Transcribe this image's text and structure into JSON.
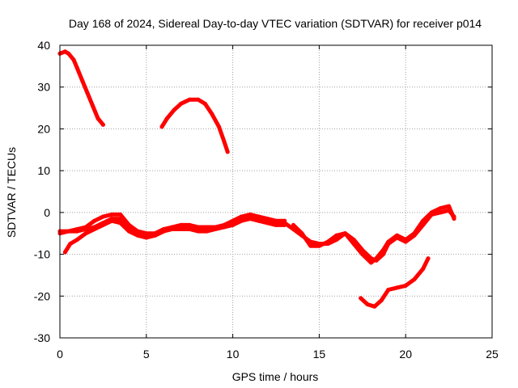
{
  "chart_data": {
    "type": "scatter",
    "title": "Day 168 of 2024, Sidereal Day-to-day VTEC variation (SDTVAR) for receiver p014",
    "xlabel": "GPS time / hours",
    "ylabel": "SDTVAR / TECUs",
    "xlim": [
      0,
      25
    ],
    "ylim": [
      -30,
      40
    ],
    "xticks": [
      0,
      5,
      10,
      15,
      20,
      25
    ],
    "yticks": [
      -30,
      -20,
      -10,
      0,
      10,
      20,
      30,
      40
    ],
    "grid": true,
    "legend": "none",
    "series_color": "#ff0000",
    "series": [
      {
        "name": "segment-1",
        "x": [
          0.0,
          0.3,
          0.5,
          0.8,
          1.0,
          1.3,
          1.6,
          1.9,
          2.2,
          2.5
        ],
        "y": [
          38,
          38.5,
          38,
          36.5,
          34.5,
          31.5,
          28.5,
          25.5,
          22.5,
          21
        ]
      },
      {
        "name": "segment-2",
        "x": [
          5.9,
          6.2,
          6.6,
          7.0,
          7.5,
          8.0,
          8.4,
          8.8,
          9.2,
          9.5,
          9.7
        ],
        "y": [
          20.5,
          22.5,
          24.5,
          26,
          27,
          27,
          26,
          23.5,
          20.5,
          17,
          14.5
        ]
      },
      {
        "name": "band-upper",
        "x": [
          0.0,
          0.5,
          1.0,
          1.5,
          2.0,
          2.5,
          3.0,
          3.5,
          4.0,
          4.5,
          5.0,
          5.5,
          6.0,
          6.5,
          7.0,
          7.5,
          8.0,
          8.5,
          9.0,
          9.5,
          10.0,
          10.5,
          11.0,
          11.5,
          12.0,
          12.5,
          13.0
        ],
        "y": [
          -5,
          -4.5,
          -4,
          -3.5,
          -2,
          -1,
          -0.5,
          -0.5,
          -3,
          -4.5,
          -5,
          -5,
          -4,
          -3.5,
          -3,
          -3,
          -3.5,
          -3.5,
          -3.5,
          -3,
          -2,
          -1,
          -0.5,
          -1,
          -1.5,
          -2,
          -2
        ]
      },
      {
        "name": "band-middle",
        "x": [
          0.0,
          0.5,
          1.0,
          1.5,
          2.0,
          2.5,
          3.0,
          3.5,
          4.0,
          4.5,
          5.0,
          5.5,
          6.0,
          6.5,
          7.0,
          7.5,
          8.0,
          8.5,
          9.0,
          9.5,
          10.0,
          10.5,
          11.0,
          11.5,
          12.0,
          12.5,
          13.0
        ],
        "y": [
          -4.5,
          -4.5,
          -4.5,
          -4,
          -3.5,
          -2.5,
          -1.5,
          -1.5,
          -3.5,
          -5,
          -5.5,
          -5.5,
          -4.5,
          -3.5,
          -3.5,
          -4,
          -4,
          -4,
          -3.5,
          -3.5,
          -2.5,
          -1.5,
          -1,
          -1.5,
          -2,
          -2.5,
          -2.5
        ]
      },
      {
        "name": "band-lower",
        "x": [
          0.3,
          0.6,
          1.0,
          1.5,
          2.0,
          2.5,
          3.0,
          3.5,
          4.0,
          4.5,
          5.0,
          5.5,
          6.0,
          6.5,
          7.0,
          7.5,
          8.0,
          8.5,
          9.0,
          9.5,
          10.0,
          10.5,
          11.0,
          11.5,
          12.0,
          12.5,
          13.0
        ],
        "y": [
          -9.5,
          -7.5,
          -6.5,
          -5,
          -4,
          -3,
          -2,
          -2.5,
          -4.5,
          -5.5,
          -6,
          -5.5,
          -4.5,
          -4,
          -4,
          -4,
          -4.5,
          -4.5,
          -4,
          -3.5,
          -3,
          -2,
          -1.5,
          -2,
          -2.5,
          -3,
          -3
        ]
      },
      {
        "name": "segment-6",
        "x": [
          13.0,
          13.5,
          14.0,
          14.5,
          15.0,
          15.5,
          16.0,
          16.5,
          17.0,
          17.5,
          18.0,
          18.3,
          18.7,
          19.0,
          19.5,
          20.0,
          20.5,
          21.0,
          21.5,
          22.0,
          22.5,
          22.8
        ],
        "y": [
          -2.5,
          -4,
          -5.5,
          -7,
          -7.5,
          -7.5,
          -6.5,
          -5,
          -6.5,
          -9,
          -11,
          -11.5,
          -10,
          -7.5,
          -6,
          -7,
          -5.5,
          -3,
          -0.5,
          0,
          0.5,
          -1
        ]
      },
      {
        "name": "segment-7",
        "x": [
          13.5,
          14.0,
          14.5,
          15.0,
          15.5,
          16.0,
          16.5,
          17.0,
          17.5,
          18.0,
          18.3,
          18.7,
          19.0,
          19.5,
          20.0,
          20.5,
          21.0,
          21.5,
          22.0,
          22.5,
          22.8
        ],
        "y": [
          -3,
          -5,
          -8,
          -8,
          -7,
          -5.5,
          -5,
          -7.5,
          -10,
          -12,
          -11,
          -9,
          -7,
          -5.5,
          -6.5,
          -5,
          -2,
          0,
          1,
          1.5,
          -1.5
        ]
      },
      {
        "name": "segment-8",
        "x": [
          17.4,
          17.8,
          18.2,
          18.6,
          19.0,
          19.5,
          20.0,
          20.5,
          21.0,
          21.3
        ],
        "y": [
          -20.5,
          -22,
          -22.5,
          -21,
          -18.5,
          -18,
          -17.5,
          -16,
          -13.5,
          -11
        ]
      }
    ]
  }
}
